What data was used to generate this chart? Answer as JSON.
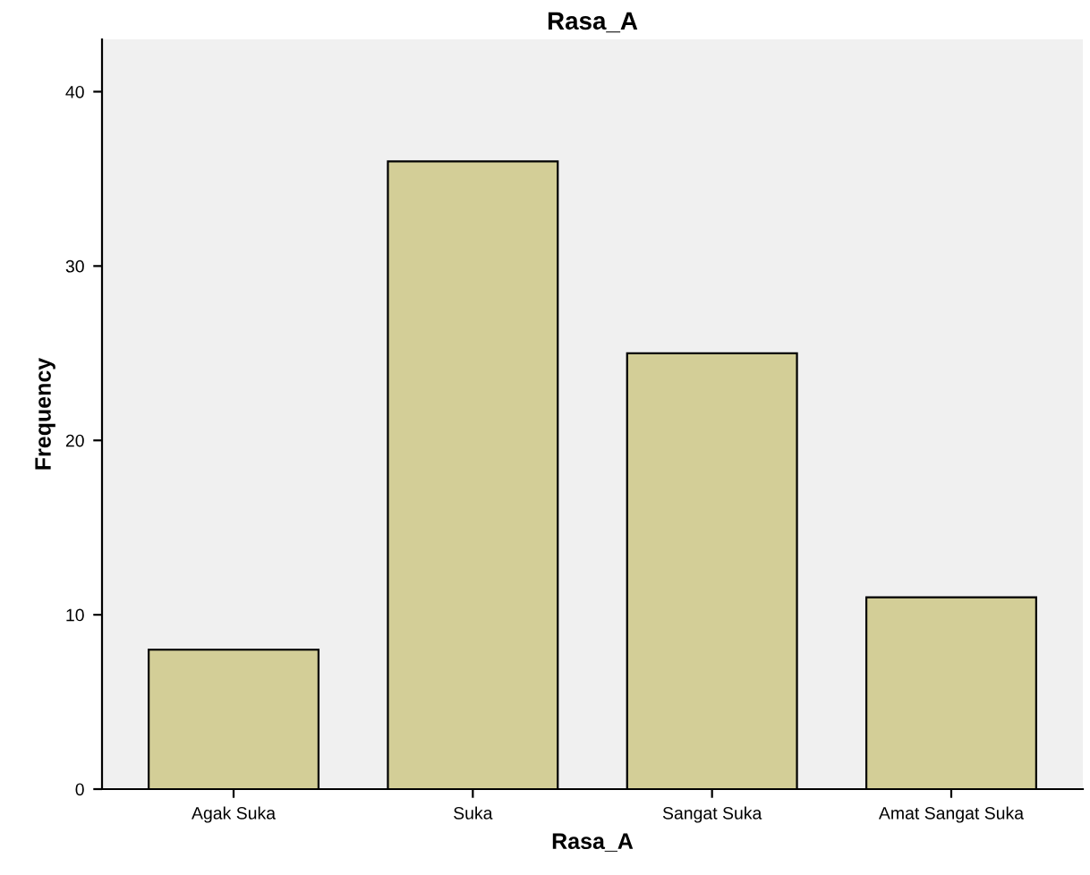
{
  "chart_data": {
    "type": "bar",
    "title": "Rasa_A",
    "xlabel": "Rasa_A",
    "ylabel": "Frequency",
    "categories": [
      "Agak Suka",
      "Suka",
      "Sangat Suka",
      "Amat Sangat Suka"
    ],
    "values": [
      8,
      36,
      25,
      11
    ],
    "color": "#d3ce97",
    "ylim": [
      0,
      43
    ],
    "yticks": [
      0,
      10,
      20,
      30,
      40
    ],
    "grid": false
  }
}
